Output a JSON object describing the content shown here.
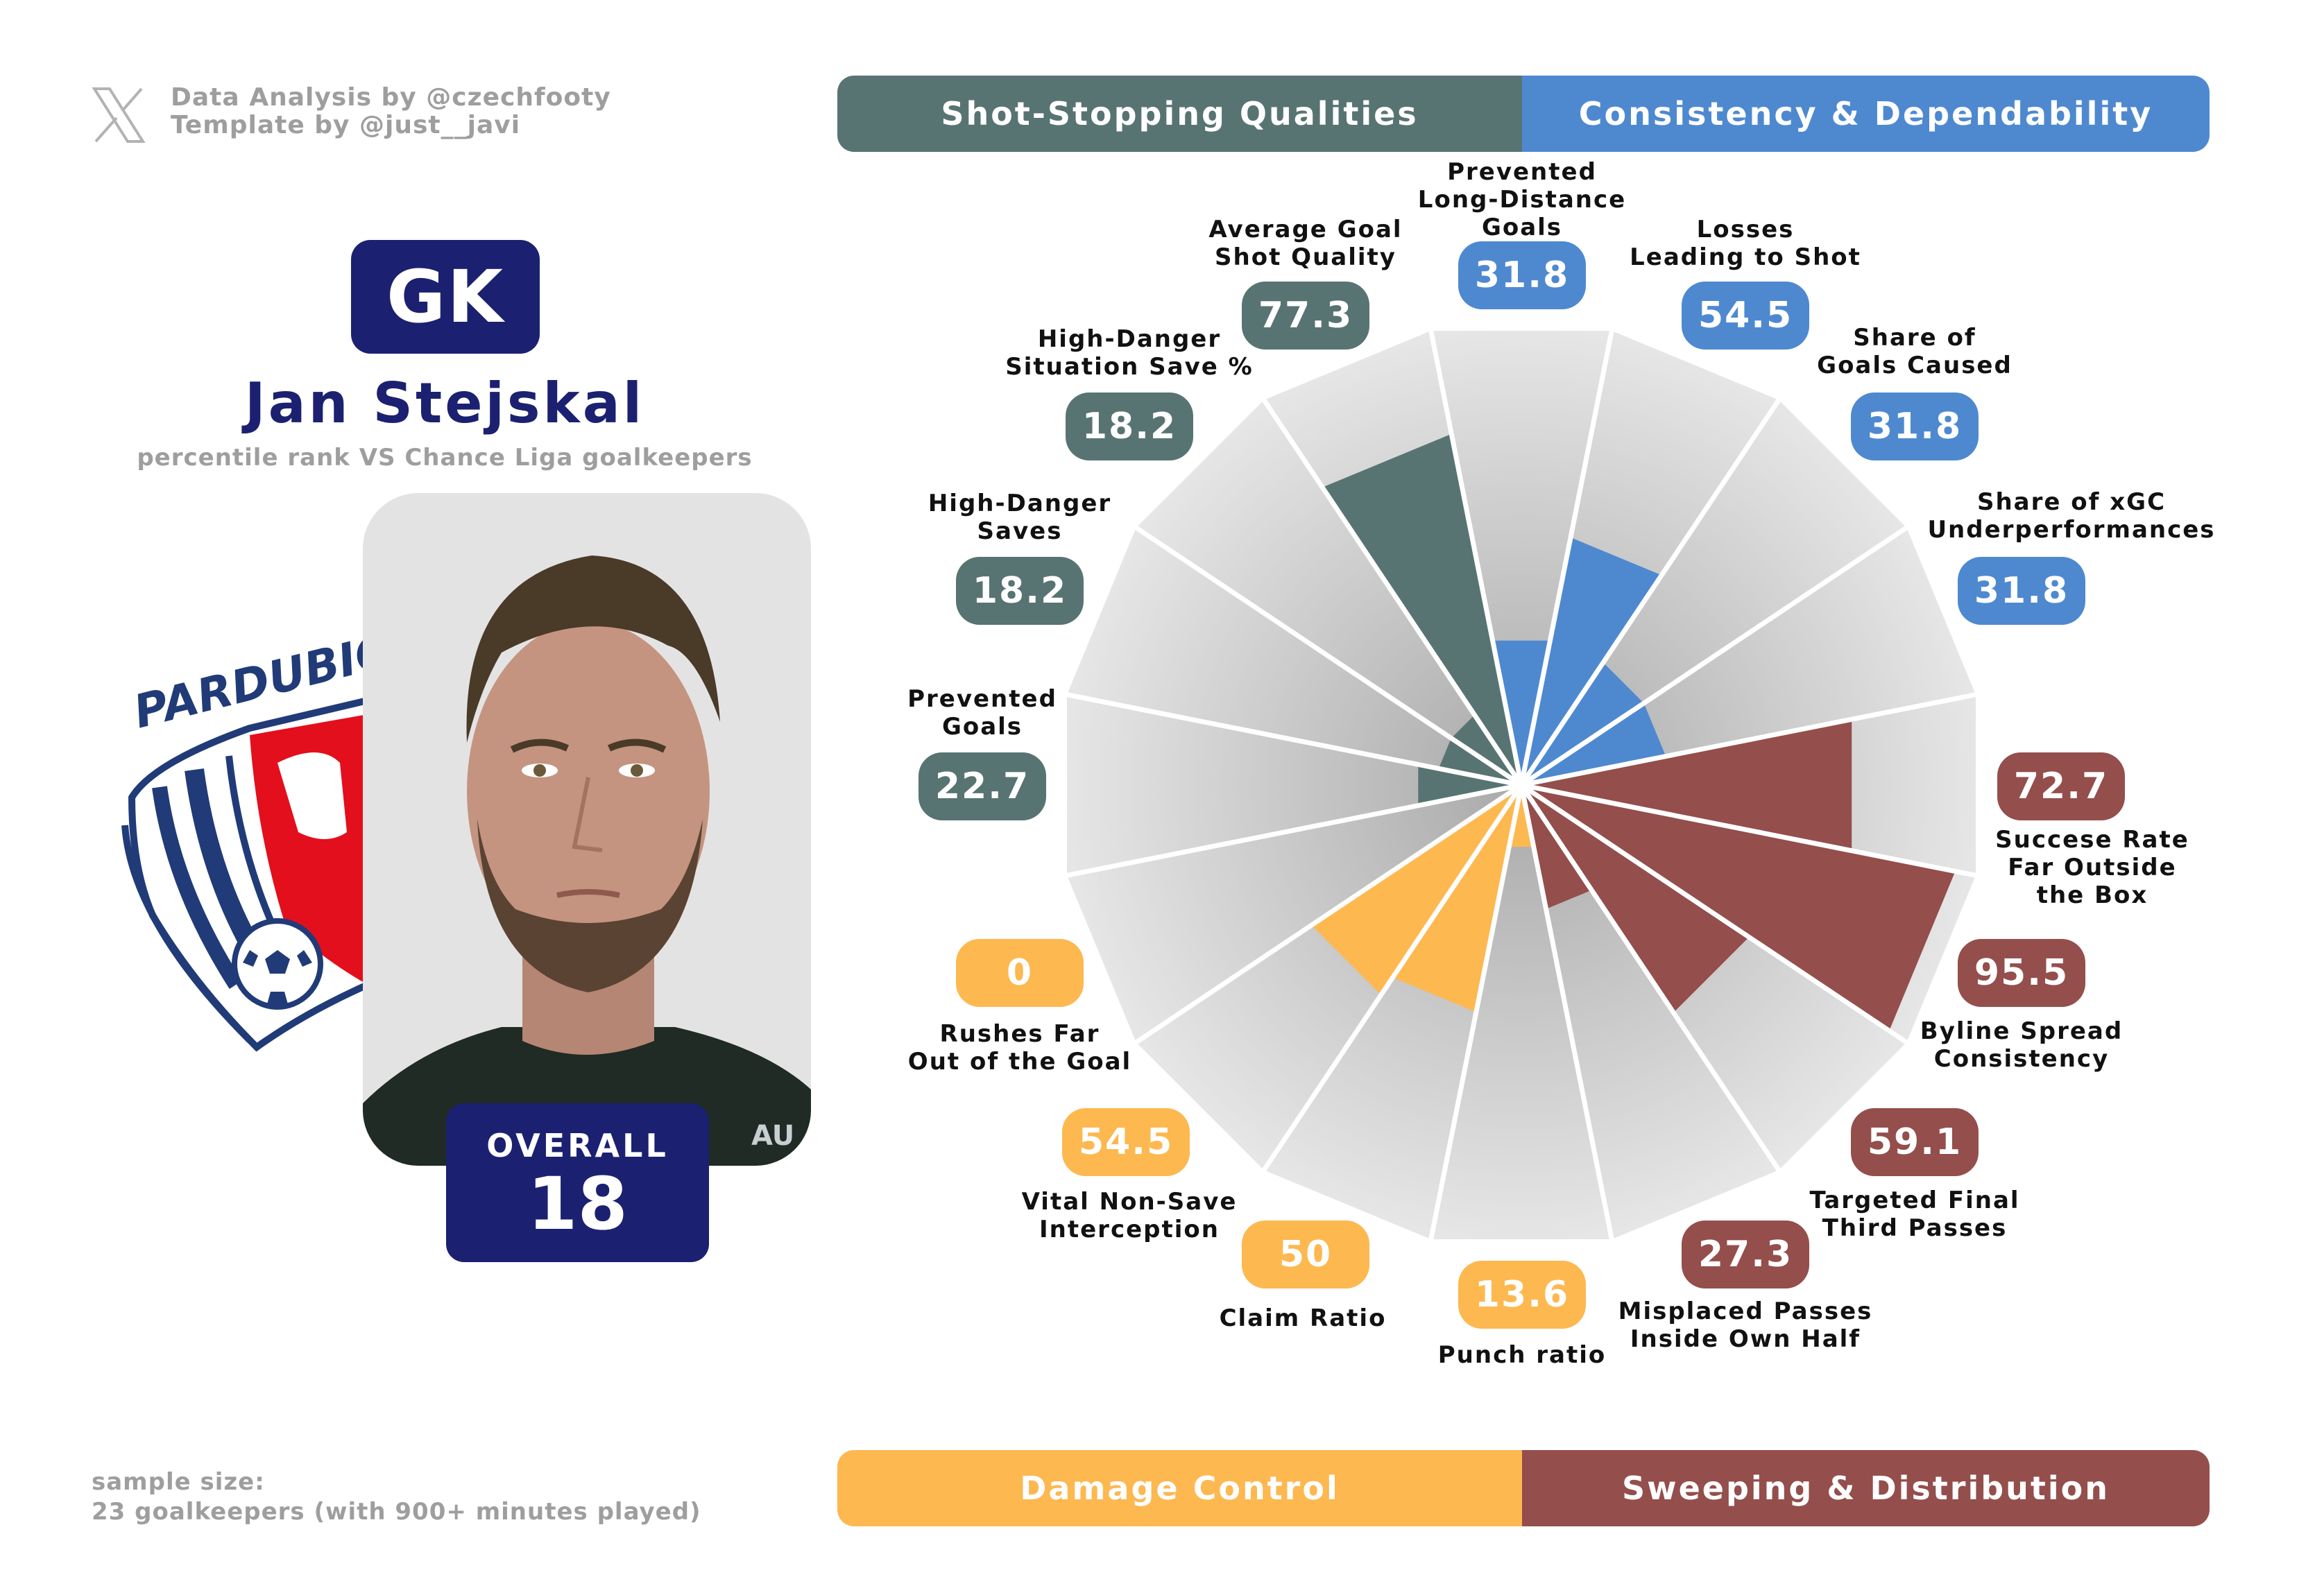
{
  "credits": {
    "line1": "Data Analysis by @czechfooty",
    "line2": "Template by @just__javi",
    "icon": "x-logo-icon"
  },
  "player": {
    "position": "GK",
    "name": "Jan Stejskal",
    "subtitle": "percentile rank VS Chance Liga goalkeepers",
    "overall_label": "OVERALL",
    "overall_value": "18",
    "club_crest_text": "PARDUBICE",
    "jersey_text": "AU"
  },
  "footer": {
    "sample_label": "sample size:",
    "sample_value": "23 goalkeepers (with 900+ minutes played)"
  },
  "categories": [
    {
      "name": "Shot-Stopping Qualities",
      "color": "#587472"
    },
    {
      "name": "Consistency & Dependability",
      "color": "#4e89d0"
    },
    {
      "name": "Damage Control",
      "color": "#fdb850"
    },
    {
      "name": "Sweeping & Distribution",
      "color": "#944e4c"
    }
  ],
  "chart_data": {
    "type": "radial-bar",
    "title": "percentile rank VS Chance Liga goalkeepers",
    "range": [
      0,
      100
    ],
    "metrics": [
      {
        "label": [
          "Prevented",
          "Long-Distance",
          "Goals"
        ],
        "value": 31.8,
        "display": "31.8",
        "category": 1
      },
      {
        "label": [
          "Losses",
          "Leading to Shot"
        ],
        "value": 54.5,
        "display": "54.5",
        "category": 1
      },
      {
        "label": [
          "Share of",
          "Goals Caused"
        ],
        "value": 31.8,
        "display": "31.8",
        "category": 1
      },
      {
        "label": [
          "Share of xGC",
          "Underperformances"
        ],
        "value": 31.8,
        "display": "31.8",
        "category": 1
      },
      {
        "label": [
          "Succese Rate",
          "Far Outside",
          "the Box"
        ],
        "value": 72.7,
        "display": "72.7",
        "category": 3
      },
      {
        "label": [
          "Byline Spread",
          "Consistency"
        ],
        "value": 95.5,
        "display": "95.5",
        "category": 3
      },
      {
        "label": [
          "Targeted Final",
          "Third Passes"
        ],
        "value": 59.1,
        "display": "59.1",
        "category": 3
      },
      {
        "label": [
          "Misplaced Passes",
          "Inside Own Half"
        ],
        "value": 27.3,
        "display": "27.3",
        "category": 3
      },
      {
        "label": [
          "Punch ratio"
        ],
        "value": 13.6,
        "display": "13.6",
        "category": 2
      },
      {
        "label": [
          "Claim Ratio"
        ],
        "value": 50,
        "display": "50",
        "category": 2
      },
      {
        "label": [
          "Vital Non-Save",
          "Interception"
        ],
        "value": 54.5,
        "display": "54.5",
        "category": 2
      },
      {
        "label": [
          "Rushes Far",
          "Out of the Goal"
        ],
        "value": 0,
        "display": "0",
        "category": 2
      },
      {
        "label": [
          "Prevented",
          "Goals"
        ],
        "value": 22.7,
        "display": "22.7",
        "category": 0
      },
      {
        "label": [
          "High-Danger",
          "Saves"
        ],
        "value": 18.2,
        "display": "18.2",
        "category": 0
      },
      {
        "label": [
          "High-Danger",
          "Situation Save %"
        ],
        "value": 18.2,
        "display": "18.2",
        "category": 0
      },
      {
        "label": [
          "Average Goal",
          "Shot Quality"
        ],
        "value": 77.3,
        "display": "77.3",
        "category": 0
      }
    ]
  }
}
